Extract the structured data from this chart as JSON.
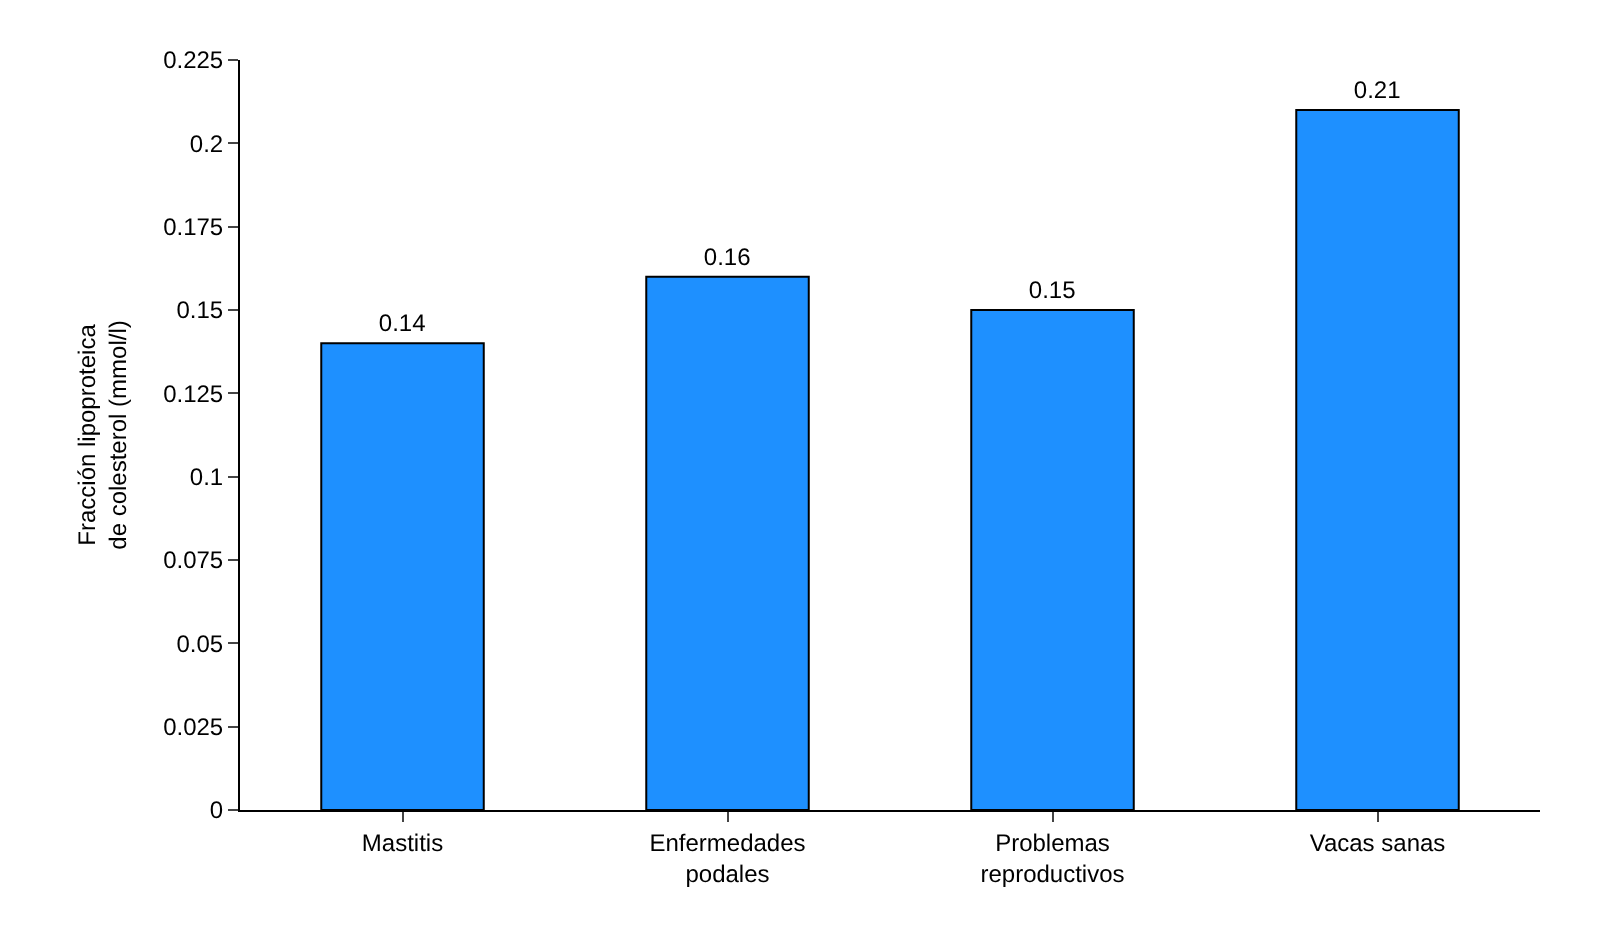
{
  "chart_data": {
    "type": "bar",
    "ylabel": "Fracción lipoproteica\nde colesterol (mmol/l)",
    "categories": [
      "Mastitis",
      "Enfermedades\npodales",
      "Problemas\nreproductivos",
      "Vacas sanas"
    ],
    "values": [
      0.14,
      0.16,
      0.15,
      0.21
    ],
    "color": "#1e90ff",
    "data_labels": true,
    "ylim": [
      0,
      0.225
    ],
    "yticks": [
      0,
      0.025,
      0.05,
      0.075,
      0.1,
      0.125,
      0.15,
      0.175,
      0.2,
      0.225
    ]
  }
}
